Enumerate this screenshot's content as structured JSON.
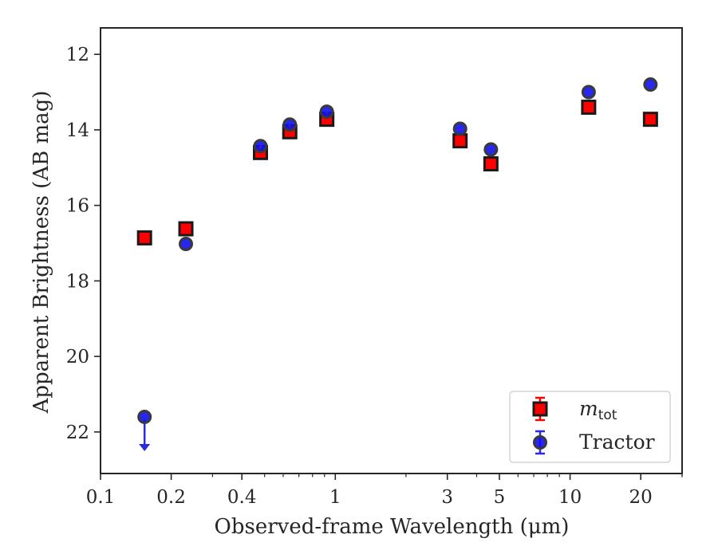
{
  "chart_data": {
    "type": "scatter",
    "xlabel": "Observed-frame Wavelength (μm)",
    "ylabel": "Apparent Brightness (AB mag)",
    "xscale": "log",
    "xlim": [
      0.1,
      30
    ],
    "ylim": [
      23.1,
      11.3
    ],
    "y_inverted": true,
    "x_ticks": [
      {
        "value": 0.1,
        "label": "0.1"
      },
      {
        "value": 0.2,
        "label": "0.2"
      },
      {
        "value": 0.4,
        "label": "0.4"
      },
      {
        "value": 1,
        "label": "1"
      },
      {
        "value": 3,
        "label": "3"
      },
      {
        "value": 5,
        "label": "5"
      },
      {
        "value": 10,
        "label": "10"
      },
      {
        "value": 20,
        "label": "20"
      }
    ],
    "y_ticks": [
      {
        "value": 12,
        "label": "12"
      },
      {
        "value": 14,
        "label": "14"
      },
      {
        "value": 16,
        "label": "16"
      },
      {
        "value": 18,
        "label": "18"
      },
      {
        "value": 20,
        "label": "20"
      },
      {
        "value": 22,
        "label": "22"
      }
    ],
    "grid": false,
    "legend_position": "bottom-right",
    "series": [
      {
        "name": "m_tot",
        "legend_main": "m",
        "legend_sub": "tot",
        "marker": "square",
        "face_color": "#ff0000",
        "edge_color": "#1a1a1a",
        "errorbar_color": "#ff0000",
        "x": [
          0.154,
          0.231,
          0.48,
          0.64,
          0.92,
          3.4,
          4.6,
          12.0,
          22.0
        ],
        "y": [
          16.86,
          16.62,
          14.6,
          14.05,
          13.72,
          14.29,
          14.9,
          13.4,
          13.72
        ]
      },
      {
        "name": "Tractor",
        "marker": "circle",
        "face_color": "#1010ee",
        "edge_color": "#3a3a3a",
        "errorbar_color": "#2a2ae6",
        "x": [
          0.154,
          0.231,
          0.48,
          0.64,
          0.92,
          3.4,
          4.6,
          12.0,
          22.0
        ],
        "y": [
          21.6,
          17.02,
          14.43,
          13.86,
          13.52,
          13.97,
          14.52,
          13.0,
          12.8
        ],
        "upper_limit": [
          true,
          false,
          false,
          false,
          false,
          false,
          false,
          false,
          false
        ]
      }
    ]
  }
}
